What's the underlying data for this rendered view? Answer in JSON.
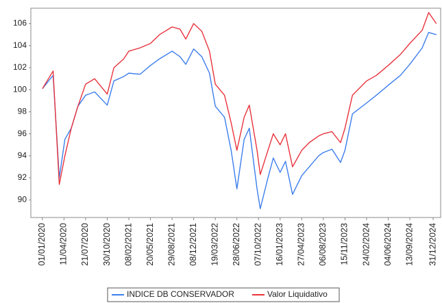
{
  "chart_data": {
    "type": "line",
    "x": [
      "2020-01-01",
      "2020-02-20",
      "2020-03-20",
      "2020-04-15",
      "2020-05-15",
      "2020-06-15",
      "2020-07-21",
      "2020-09-01",
      "2020-10-30",
      "2020-11-30",
      "2021-01-15",
      "2021-02-08",
      "2021-04-01",
      "2021-05-20",
      "2021-07-01",
      "2021-08-29",
      "2021-10-05",
      "2021-11-01",
      "2021-12-08",
      "2022-01-15",
      "2022-02-20",
      "2022-03-19",
      "2022-05-01",
      "2022-06-01",
      "2022-06-28",
      "2022-08-01",
      "2022-08-25",
      "2022-09-30",
      "2022-10-15",
      "2022-11-20",
      "2022-12-15",
      "2023-01-16",
      "2023-02-10",
      "2023-03-15",
      "2023-04-27",
      "2023-06-01",
      "2023-07-15",
      "2023-08-06",
      "2023-09-15",
      "2023-10-25",
      "2023-11-15",
      "2023-12-20",
      "2024-02-24",
      "2024-04-10",
      "2024-06-04",
      "2024-07-31",
      "2024-09-13",
      "2024-11-10",
      "2024-12-10",
      "2025-01-15"
    ],
    "series": [
      {
        "name": "INDICE DB CONSERVADOR",
        "color": "#3b7ded",
        "values": [
          100.1,
          101.3,
          92.0,
          95.5,
          96.5,
          98.5,
          99.5,
          99.8,
          98.6,
          100.8,
          101.2,
          101.5,
          101.4,
          102.2,
          102.8,
          103.5,
          103.0,
          102.3,
          103.7,
          103.0,
          101.5,
          98.5,
          97.5,
          94.5,
          91.0,
          95.5,
          96.5,
          91.0,
          89.2,
          92.0,
          93.8,
          92.5,
          93.5,
          90.5,
          92.2,
          93.0,
          94.0,
          94.3,
          94.6,
          93.4,
          94.5,
          97.8,
          98.8,
          99.5,
          100.4,
          101.3,
          102.3,
          103.8,
          105.2,
          105.0
        ]
      },
      {
        "name": "Valor Liquidativo",
        "color": "#e8333c",
        "values": [
          100.1,
          101.7,
          91.4,
          94.0,
          96.5,
          98.5,
          100.5,
          101.0,
          99.6,
          102.0,
          102.8,
          103.5,
          103.8,
          104.2,
          105.0,
          105.7,
          105.5,
          104.6,
          106.0,
          105.3,
          103.5,
          100.5,
          99.5,
          97.0,
          94.5,
          97.5,
          98.6,
          94.5,
          92.3,
          94.5,
          96.0,
          95.0,
          96.0,
          93.0,
          94.5,
          95.2,
          95.8,
          96.0,
          96.2,
          95.2,
          96.5,
          99.5,
          100.8,
          101.3,
          102.2,
          103.2,
          104.2,
          105.4,
          107.0,
          106.0
        ]
      }
    ],
    "xlim": [
      "2019-11-08",
      "2025-02-04"
    ],
    "xticks": [
      {
        "value": "2020-01-01",
        "label": "01/01/2020"
      },
      {
        "value": "2020-04-11",
        "label": "11/04/2020"
      },
      {
        "value": "2020-07-21",
        "label": "21/07/2020"
      },
      {
        "value": "2020-10-30",
        "label": "30/10/2020"
      },
      {
        "value": "2021-02-08",
        "label": "08/02/2021"
      },
      {
        "value": "2021-05-20",
        "label": "20/05/2021"
      },
      {
        "value": "2021-08-29",
        "label": "29/08/2021"
      },
      {
        "value": "2021-12-08",
        "label": "08/12/2021"
      },
      {
        "value": "2022-03-19",
        "label": "19/03/2022"
      },
      {
        "value": "2022-06-28",
        "label": "28/06/2022"
      },
      {
        "value": "2022-10-07",
        "label": "07/10/2022"
      },
      {
        "value": "2023-01-16",
        "label": "16/01/2023"
      },
      {
        "value": "2023-04-27",
        "label": "27/04/2023"
      },
      {
        "value": "2023-08-06",
        "label": "06/08/2023"
      },
      {
        "value": "2023-11-15",
        "label": "15/11/2023"
      },
      {
        "value": "2024-02-24",
        "label": "24/02/2024"
      },
      {
        "value": "2024-06-04",
        "label": "04/06/2024"
      },
      {
        "value": "2024-09-13",
        "label": "13/09/2024"
      },
      {
        "value": "2024-12-31",
        "label": "31/12/2024"
      }
    ],
    "ylim": [
      88.4,
      107.4
    ],
    "yticks": [
      90,
      92,
      94,
      96,
      98,
      100,
      102,
      104,
      106
    ],
    "grid": false
  }
}
